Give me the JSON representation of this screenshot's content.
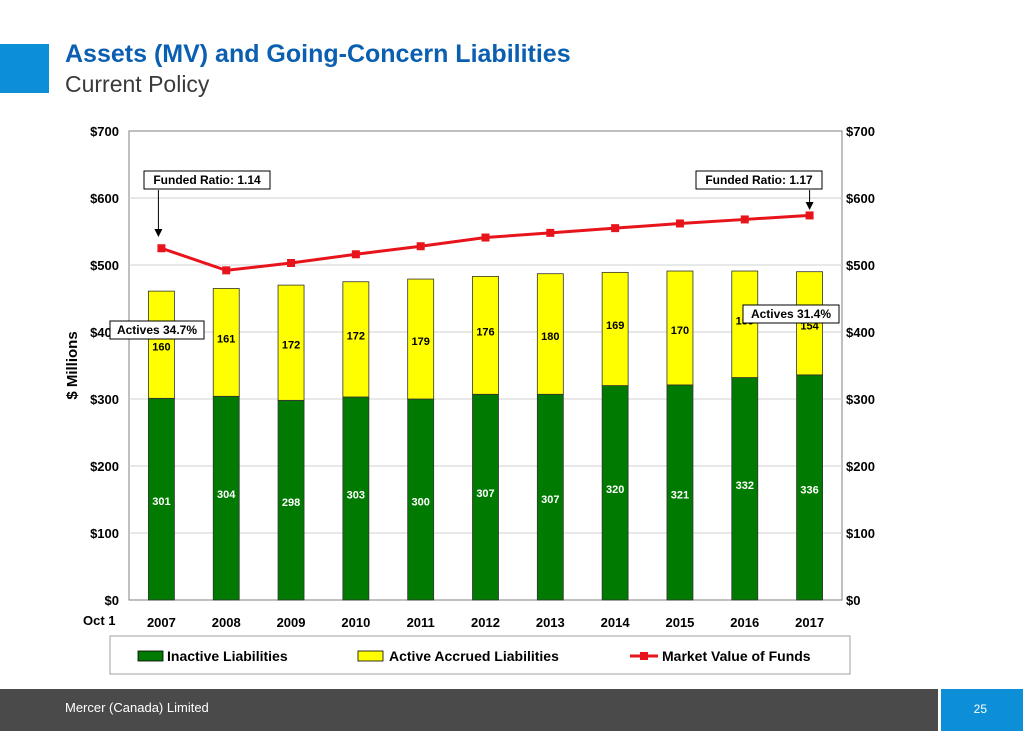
{
  "slide": {
    "title": "Assets (MV) and Going-Concern Liabilities",
    "subtitle": "Current Policy"
  },
  "footer": {
    "company": "Mercer (Canada) Limited",
    "page_number": "25"
  },
  "colors": {
    "accent": "#0c8fd6",
    "title": "#0b5fb0",
    "inactive": "#007a00",
    "active": "#ffff00",
    "market": "#e8141b",
    "footer": "#4a4a4a"
  },
  "chart_data": {
    "type": "bar",
    "stacked": true,
    "title": "",
    "ylabel": "$ Millions",
    "x_prefix_label": "Oct 1",
    "ylim": [
      0,
      700
    ],
    "yticks": [
      "$0",
      "$100",
      "$200",
      "$300",
      "$400",
      "$500",
      "$600",
      "$700"
    ],
    "categories": [
      "2007",
      "2008",
      "2009",
      "2010",
      "2011",
      "2012",
      "2013",
      "2014",
      "2015",
      "2016",
      "2017"
    ],
    "series": [
      {
        "name": "Inactive Liabilities",
        "kind": "bar",
        "values": [
          301,
          304,
          298,
          303,
          300,
          307,
          307,
          320,
          321,
          332,
          336
        ]
      },
      {
        "name": "Active Accrued Liabilities",
        "kind": "bar",
        "values": [
          160,
          161,
          172,
          172,
          179,
          176,
          180,
          169,
          170,
          159,
          154
        ]
      },
      {
        "name": "Market Value of Funds",
        "kind": "line",
        "values": [
          525,
          492,
          503,
          516,
          528,
          541,
          548,
          555,
          562,
          568,
          574
        ]
      }
    ],
    "annotations": [
      {
        "text": "Funded Ratio: 1.14",
        "category": "2007"
      },
      {
        "text": "Funded Ratio: 1.17",
        "category": "2017"
      },
      {
        "text": "Actives 34.7%",
        "category": "2007"
      },
      {
        "text": "Actives 31.4%",
        "category": "2017"
      }
    ],
    "legend_position": "bottom",
    "grid": "horizontal"
  }
}
